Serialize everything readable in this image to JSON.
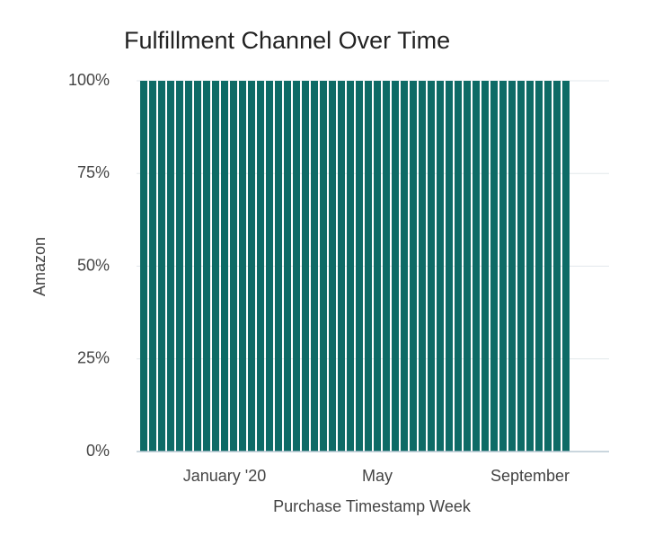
{
  "chart_data": {
    "type": "bar",
    "title": "Fulfillment Channel Over Time",
    "x_label": "Purchase Timestamp Week",
    "y_label": "Amazon",
    "categories": [
      null,
      null,
      null,
      null,
      null,
      null,
      null,
      null,
      null,
      "January '20",
      null,
      null,
      null,
      null,
      null,
      null,
      null,
      null,
      null,
      null,
      null,
      null,
      null,
      null,
      null,
      null,
      "May",
      null,
      null,
      null,
      null,
      null,
      null,
      null,
      null,
      null,
      null,
      null,
      null,
      null,
      null,
      null,
      null,
      "September",
      null,
      null,
      null,
      null
    ],
    "values": [
      100,
      100,
      100,
      100,
      100,
      100,
      100,
      100,
      100,
      100,
      100,
      100,
      100,
      100,
      100,
      100,
      100,
      100,
      100,
      100,
      100,
      100,
      100,
      100,
      100,
      100,
      100,
      100,
      100,
      100,
      100,
      100,
      100,
      100,
      100,
      100,
      100,
      100,
      100,
      100,
      100,
      100,
      100,
      100,
      100,
      100,
      100,
      100
    ],
    "color": "#0e6b66",
    "ylim": [
      0,
      100
    ],
    "yticks": [
      {
        "value": 0,
        "label": "0%"
      },
      {
        "value": 25,
        "label": "25%"
      },
      {
        "value": 50,
        "label": "50%"
      },
      {
        "value": 75,
        "label": "75%"
      },
      {
        "value": 100,
        "label": "100%"
      }
    ],
    "grid": true
  }
}
